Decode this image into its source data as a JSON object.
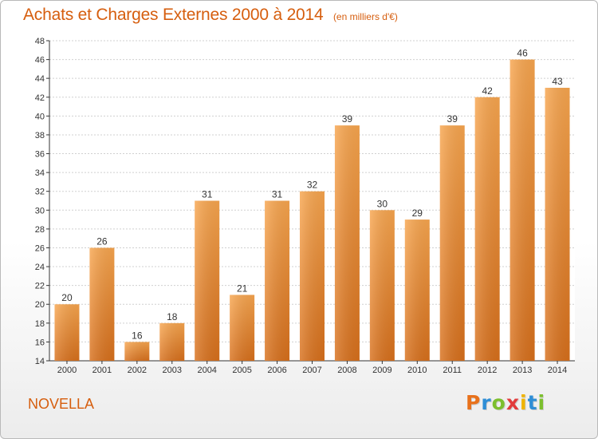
{
  "title": "Achats et Charges Externes 2000 à 2014",
  "subtitle": "(en milliers d'€)",
  "entity": "NOVELLA",
  "logo": {
    "letters": [
      "P",
      "r",
      "o",
      "x",
      "i",
      "t",
      "i"
    ],
    "colors": [
      "#e8711b",
      "#2e8ed6",
      "#7cbf2e",
      "#e23b3b",
      "#f0b400",
      "#2e8ed6",
      "#7cbf2e"
    ]
  },
  "colors": {
    "bar_light": "#f8a64f",
    "bar_dark": "#d8701c",
    "text": "#d65e0e",
    "grid": "#d0d0d0",
    "axis": "#333333"
  },
  "chart_data": {
    "type": "bar",
    "title": "Achats et Charges Externes 2000 à 2014",
    "subtitle": "(en milliers d'€)",
    "categories": [
      "2000",
      "2001",
      "2002",
      "2003",
      "2004",
      "2005",
      "2006",
      "2007",
      "2008",
      "2009",
      "2010",
      "2011",
      "2012",
      "2013",
      "2014"
    ],
    "values": [
      20,
      26,
      16,
      18,
      31,
      21,
      31,
      32,
      39,
      30,
      29,
      39,
      42,
      46,
      43
    ],
    "ylim": [
      14,
      48
    ],
    "yticks": [
      14,
      16,
      18,
      20,
      22,
      24,
      26,
      28,
      30,
      32,
      34,
      36,
      38,
      40,
      42,
      44,
      46,
      48
    ],
    "grid": true,
    "data_labels": true,
    "xlabel": "",
    "ylabel": ""
  }
}
